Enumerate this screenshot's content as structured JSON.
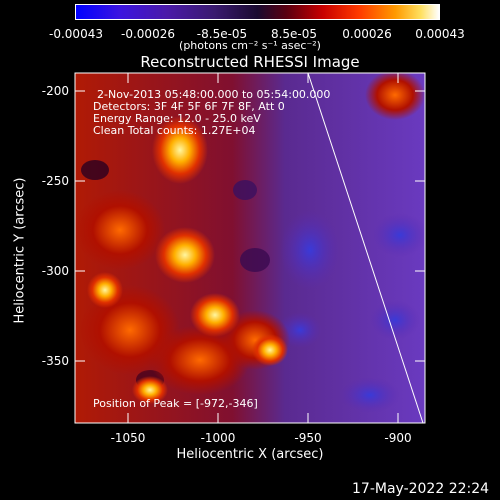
{
  "colorbar": {
    "tick_labels": [
      "-0.00043",
      "-0.00026",
      "-8.5e-05",
      "8.5e-05",
      "0.00026",
      "0.00043"
    ],
    "units_label": "(photons cm⁻² s⁻¹ asec⁻²)"
  },
  "plot": {
    "title": "Reconstructed RHESSI Image",
    "xlabel": "Heliocentric X (arcsec)",
    "ylabel": "Heliocentric Y (arcsec)",
    "xlim": [
      -1080,
      -885
    ],
    "ylim": [
      -385,
      -190
    ],
    "xticks": [
      "-1050",
      "-1000",
      "-950",
      "-900"
    ],
    "yticks": [
      "-200",
      "-250",
      "-300",
      "-350"
    ]
  },
  "annotations": {
    "time_range": "2-Nov-2013 05:48:00.000 to 05:54:00.000",
    "detectors": "Detectors: 3F 4F 5F 6F 7F 8F, Att 0",
    "energy": "Energy Range: 12.0 - 25.0 keV",
    "method": "Clean    Total counts: 1.27E+04",
    "peak": "Position of Peak = [-972,-346]"
  },
  "footer": {
    "timestamp": "17-May-2022 22:24"
  },
  "colors": {
    "background": "#000000",
    "frame": "#ffffff"
  }
}
